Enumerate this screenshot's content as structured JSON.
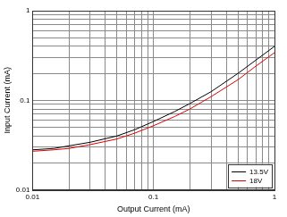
{
  "chart_data": {
    "type": "line",
    "x_label": "Output Current (mA)",
    "y_label": "Input Current (mA)",
    "x": [
      0.01,
      0.015,
      0.02,
      0.03,
      0.05,
      0.07,
      0.1,
      0.15,
      0.2,
      0.3,
      0.5,
      0.7,
      1
    ],
    "series": [
      {
        "name": "13.5V",
        "color": "#000000",
        "values": [
          0.028,
          0.029,
          0.031,
          0.034,
          0.04,
          0.047,
          0.058,
          0.075,
          0.092,
          0.125,
          0.2,
          0.28,
          0.4
        ]
      },
      {
        "name": "18V",
        "color": "#e00000",
        "values": [
          0.027,
          0.028,
          0.029,
          0.032,
          0.037,
          0.043,
          0.052,
          0.066,
          0.08,
          0.11,
          0.17,
          0.24,
          0.34
        ]
      }
    ],
    "xlim": [
      0.01,
      1
    ],
    "ylim": [
      0.01,
      1
    ],
    "xticks": [
      0.01,
      0.1,
      1
    ],
    "yticks": [
      0.01,
      0.1,
      1
    ],
    "log": true,
    "grid": true,
    "legend": "lower right"
  }
}
